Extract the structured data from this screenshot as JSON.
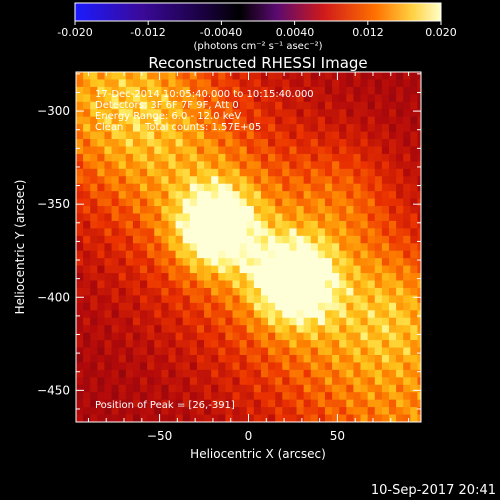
{
  "colorbar": {
    "ticks": [
      "-0.020",
      "-0.012",
      "-0.0040",
      "0.0040",
      "0.012",
      "0.020"
    ],
    "range": [
      -0.02,
      0.02
    ],
    "unit_label": "(photons cm⁻² s⁻¹ asec⁻²)"
  },
  "chart_data": {
    "type": "heatmap",
    "title": "Reconstructed RHESSI Image",
    "xlabel": "Heliocentric X (arcsec)",
    "ylabel": "Heliocentric Y (arcsec)",
    "xlim": [
      -97,
      97
    ],
    "ylim": [
      -467,
      -279
    ],
    "x_ticks": [
      -50,
      0,
      50
    ],
    "y_ticks": [
      -300,
      -350,
      -400,
      -450
    ],
    "colormap": "rhessi-fire",
    "sources": [
      {
        "x": -18,
        "y": -362,
        "intensity": 0.019
      },
      {
        "x": 26,
        "y": -391,
        "intensity": 0.02
      }
    ]
  },
  "info": {
    "line1": "17-Dec-2014 10:05:40.000 to 10:15:40.000",
    "line2": "Detectors: 3F 6F 7F 9F, Att 0",
    "line3": "Energy Range: 6.0 - 12.0 keV",
    "line4_label": "Clean",
    "line4_counts": "Total counts: 1.57E+05"
  },
  "peak_text": "Position of Peak = [26,-391]",
  "timestamp": "10-Sep-2017 20:41"
}
